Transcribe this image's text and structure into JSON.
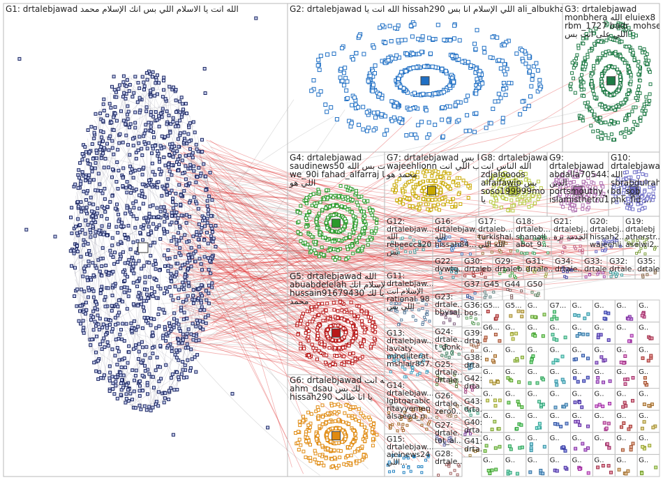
{
  "groups": [
    {
      "label": [
        "G1: drtalebjawad الله انت يا الاسلام اللي بس انك الإسلام محمد"
      ]
    },
    {
      "label": [
        "G2: drtalebjawad الله انت يا hissah290 اللي الإسلام انا بس ali_albukhaiti"
      ]
    },
    {
      "label": [
        "G3: drtalebjawad",
        "monbhera الله eluiex8",
        "rbm_1727 badr_mohsen_",
        "اللي على انت بس"
      ]
    },
    {
      "label": [
        "G4: drtalebjawad",
        "saudinews50 انت بس الله",
        "we_90i fahad_alfarraj انا",
        "اللي هو"
      ]
    },
    {
      "label": [
        "G7: drtalebjawad الله يا بس",
        "wajeehlionn طالب اللي انت",
        "محمد هو"
      ]
    },
    {
      "label": [
        "G8: drtalebjawad",
        "الله الناس انت",
        "zdjaloooos",
        "alfaifawip بس",
        "soso199999mo عن",
        "يا"
      ]
    },
    {
      "label": [
        "G9:",
        "drtalebjawad",
        "abdalla705443...",
        "الدين",
        "portsmouthy_q8",
        "islamisthetru10..."
      ]
    },
    {
      "label": [
        "G10:",
        "drtalebjawad",
        "الله",
        "sbrabdulrah...",
        "bd_sob",
        "phk_fld ..."
      ]
    },
    {
      "label": [
        "G12:",
        "drtalebjaw...",
        "الله",
        "rebeecca20",
        "بس"
      ]
    },
    {
      "label": [
        "G16:",
        "drtalebjaw...",
        "الله",
        "hissah84..."
      ]
    },
    {
      "label": [
        "G17:",
        "drtaleb...",
        "turkishal...",
        "الله اللي"
      ]
    },
    {
      "label": [
        "G18:",
        "drtaleb...",
        "shamail...",
        "abot_9..."
      ]
    },
    {
      "label": [
        "G21:",
        "drtalebj...",
        "الخدمة برة"
      ]
    },
    {
      "label": [
        "G20:",
        "drtalebj...",
        "hissah2...",
        "wajeehli..."
      ]
    },
    {
      "label": [
        "G19:",
        "drtalebj",
        "atherstr...",
        "aselwi2..."
      ]
    },
    {
      "label": [
        "G22:",
        "dvwtq..."
      ]
    },
    {
      "label": [
        "G30:",
        "drtaleb..."
      ]
    },
    {
      "label": [
        "G29:",
        "drtaleb..."
      ]
    },
    {
      "label": [
        "G31:",
        "drtale..."
      ]
    },
    {
      "label": [
        "G34:",
        "drtale..."
      ]
    },
    {
      "label": [
        "G33:",
        "drtale..."
      ]
    },
    {
      "label": [
        "G32:",
        "drtale..."
      ]
    },
    {
      "label": [
        "G35:",
        "drtale..."
      ]
    },
    {
      "label": [
        "G5: drtalebjawad الله",
        "abuabdelelah انت الإسلام انك",
        "hussain91679430 يا لك",
        "محمد"
      ]
    },
    {
      "label": [
        "G6: drtalebjawad الله انت",
        "ahm_dsau لك بس",
        "hissah290 يا انا طالب"
      ]
    },
    {
      "label": [
        "G11:",
        "drtalebjaw...",
        "الإسلام انت",
        "rational_98",
        "اللي بس"
      ]
    },
    {
      "label": [
        "G13:",
        "drtalebjaw...",
        "laviaty",
        "mindliterat...",
        "mshlalr857..."
      ]
    },
    {
      "label": [
        "G14:",
        "drtalebjaw...",
        "lgbtqarabic",
        "ritayyemen",
        "alsaeed_n..."
      ]
    },
    {
      "label": [
        "G15:",
        "drtalebjaw...",
        "ajelnews24",
        "اللي..."
      ]
    },
    {
      "label": [
        "G23:",
        "drtale...",
        "bbysal..."
      ]
    },
    {
      "label": [
        "G24:",
        "drtale...",
        "t_donk..."
      ]
    },
    {
      "label": [
        "G25:",
        "drtale...",
        "drtale..."
      ]
    },
    {
      "label": [
        "G26:",
        "drtale...",
        "zero0..."
      ]
    },
    {
      "label": [
        "G27:",
        "drtale...",
        "tot_al..."
      ]
    },
    {
      "label": [
        "G28:",
        "drtale..."
      ]
    },
    {
      "label": [
        "G37"
      ]
    },
    {
      "label": [
        "G36:",
        "bos..."
      ]
    },
    {
      "label": [
        "G39:",
        "drta..."
      ]
    },
    {
      "label": [
        "G38:",
        "drta..."
      ]
    },
    {
      "label": [
        "G42:",
        "drta..."
      ]
    },
    {
      "label": [
        "G43:",
        "drta..."
      ]
    },
    {
      "label": [
        "G40:",
        "drta..."
      ]
    },
    {
      "label": [
        "G41:",
        "drta..."
      ]
    },
    {
      "label": [
        "G45"
      ]
    },
    {
      "label": [
        "G44"
      ]
    },
    {
      "label": [
        "G50"
      ]
    }
  ],
  "minor_groups": [
    "G5...",
    "G5...",
    "G..",
    "G7...",
    "G..",
    "G..",
    "G..",
    "G..",
    "G6...",
    "G..",
    "G..",
    "G..",
    "G..",
    "G..",
    "G..",
    "G..",
    "G..",
    "G..",
    "G..",
    "G..",
    "G..",
    "G..",
    "G..",
    "G..",
    "G..",
    "G..",
    "G..",
    "G..",
    "G..",
    "G..",
    "G..",
    "G..",
    "G..",
    "G..",
    "G..",
    "G..",
    "G..",
    "G..",
    "G..",
    "G..",
    "G..",
    "G..",
    "G..",
    "G..",
    "G..",
    "G..",
    "G..",
    "G..",
    "G..",
    "G..",
    "G..",
    "G..",
    "G..",
    "G..",
    "G..",
    "G..",
    "G..",
    "G..",
    "G..",
    "G..",
    "G..",
    "G..",
    "G..",
    "G.."
  ]
}
